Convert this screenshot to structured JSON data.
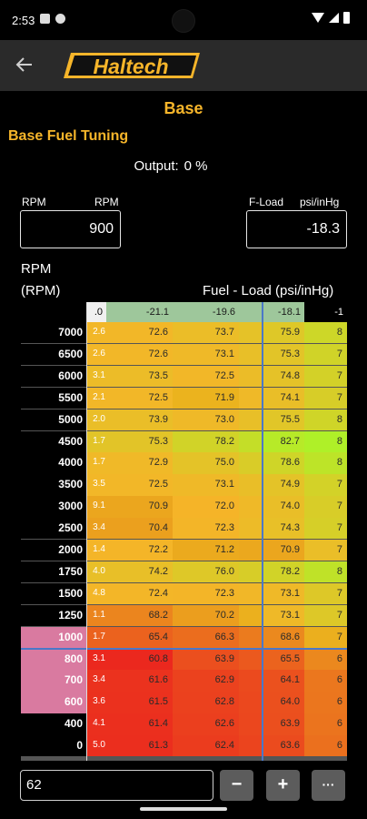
{
  "status_bar": {
    "time": "2:53"
  },
  "app": {
    "brand": "Haltech"
  },
  "screen": {
    "title": "Base",
    "subtitle": "Base Fuel Tuning",
    "output_label": "Output:",
    "output_value": "0 %"
  },
  "fields": {
    "rpm": {
      "name": "RPM",
      "unit": "RPM",
      "value": "900"
    },
    "load": {
      "name": "F-Load",
      "unit": "psi/inHg",
      "value": "-18.3"
    }
  },
  "table": {
    "row_axis_name": "RPM",
    "row_axis_unit": "(RPM)",
    "col_axis_label": "Fuel - Load (psi/inHg)",
    "col_headers": [
      ".0",
      "-21.1",
      "-19.6",
      "",
      "-18.1",
      "-1"
    ],
    "rows": [
      {
        "rpm": "7000",
        "cells": [
          "2.6",
          "72.6",
          "73.7",
          "",
          "75.9",
          "8"
        ]
      },
      {
        "rpm": "6500",
        "cells": [
          "2.6",
          "72.6",
          "73.1",
          "",
          "75.3",
          "7"
        ]
      },
      {
        "rpm": "6000",
        "cells": [
          "3.1",
          "73.5",
          "72.5",
          "",
          "74.8",
          "7"
        ]
      },
      {
        "rpm": "5500",
        "cells": [
          "2.1",
          "72.5",
          "71.9",
          "",
          "74.1",
          "7"
        ]
      },
      {
        "rpm": "5000",
        "cells": [
          "2.0",
          "73.9",
          "73.0",
          "",
          "75.5",
          "8"
        ]
      },
      {
        "rpm": "4500",
        "cells": [
          "1.7",
          "75.3",
          "78.2",
          "",
          "82.7",
          "8"
        ]
      },
      {
        "rpm": "4000",
        "cells": [
          "1.7",
          "72.9",
          "75.0",
          "",
          "78.6",
          "8"
        ]
      },
      {
        "rpm": "3500",
        "cells": [
          "3.5",
          "72.5",
          "73.1",
          "",
          "74.9",
          "7"
        ]
      },
      {
        "rpm": "3000",
        "cells": [
          "9.1",
          "70.9",
          "72.0",
          "",
          "74.0",
          "7"
        ]
      },
      {
        "rpm": "2500",
        "cells": [
          "3.4",
          "70.4",
          "72.3",
          "",
          "74.3",
          "7"
        ]
      },
      {
        "rpm": "2000",
        "cells": [
          "1.4",
          "72.2",
          "71.2",
          "",
          "70.9",
          "7"
        ]
      },
      {
        "rpm": "1750",
        "cells": [
          "4.0",
          "74.2",
          "76.0",
          "",
          "78.2",
          "8"
        ]
      },
      {
        "rpm": "1500",
        "cells": [
          "4.8",
          "72.4",
          "72.3",
          "",
          "73.1",
          "7"
        ]
      },
      {
        "rpm": "1250",
        "cells": [
          "1.1",
          "68.2",
          "70.2",
          "",
          "73.1",
          "7"
        ]
      },
      {
        "rpm": "1000",
        "cells": [
          "1.7",
          "65.4",
          "66.3",
          "",
          "68.6",
          "7"
        ]
      },
      {
        "rpm": "800",
        "cells": [
          "3.1",
          "60.8",
          "63.9",
          "",
          "65.5",
          "6"
        ]
      },
      {
        "rpm": "700",
        "cells": [
          "3.4",
          "61.6",
          "62.9",
          "",
          "64.1",
          "6"
        ]
      },
      {
        "rpm": "600",
        "cells": [
          "3.6",
          "61.5",
          "62.8",
          "",
          "64.0",
          "6"
        ]
      },
      {
        "rpm": "400",
        "cells": [
          "4.1",
          "61.4",
          "62.6",
          "",
          "63.9",
          "6"
        ]
      },
      {
        "rpm": "0",
        "cells": [
          "5.0",
          "61.3",
          "62.4",
          "",
          "63.6",
          "6"
        ]
      }
    ]
  },
  "bottom_bar": {
    "input_value": "62",
    "decrement_label": "−",
    "increment_label": "+",
    "more_label": "···"
  },
  "colors": {
    "accent": "#f6b52a",
    "header_green": "#9ec79b",
    "highlight_rpm": "#d97aa0",
    "grid_line": "#4a78c8"
  }
}
